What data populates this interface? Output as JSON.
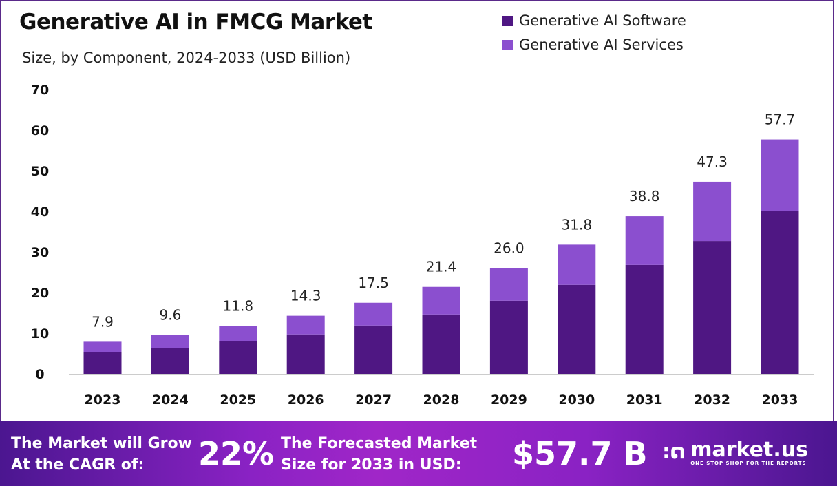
{
  "chart_data": {
    "type": "bar",
    "stacked": true,
    "title": "Generative AI in FMCG Market",
    "subtitle": "Size, by Component, 2024-2033 (USD Billion)",
    "categories": [
      "2023",
      "2024",
      "2025",
      "2026",
      "2027",
      "2028",
      "2029",
      "2030",
      "2031",
      "2032",
      "2033"
    ],
    "series": [
      {
        "name": "Generative AI Software",
        "color": "#4f1783",
        "values": [
          5.3,
          6.4,
          8.0,
          9.7,
          11.9,
          14.6,
          18.0,
          21.9,
          26.8,
          32.7,
          40.0
        ]
      },
      {
        "name": "Generative AI Services",
        "color": "#8b4fcf",
        "values": [
          2.6,
          3.2,
          3.8,
          4.6,
          5.6,
          6.8,
          8.0,
          9.9,
          12.0,
          14.6,
          17.7
        ]
      }
    ],
    "totals": [
      "7.9",
      "9.6",
      "11.8",
      "14.3",
      "17.5",
      "21.4",
      "26.0",
      "31.8",
      "38.8",
      "47.3",
      "57.7"
    ],
    "yticks": [
      0,
      10,
      20,
      30,
      40,
      50,
      60,
      70
    ],
    "ylim": [
      0,
      70
    ],
    "grid": false,
    "legend_position": "top-right"
  },
  "footer": {
    "cagr_text_1": "The Market will Grow",
    "cagr_text_2": "At the CAGR of:",
    "cagr_value": "22%",
    "forecast_text_1": "The Forecasted Market",
    "forecast_text_2": "Size for 2033 in USD:",
    "forecast_value": "$57.7 B",
    "logo_name": "market.us",
    "logo_tagline": "ONE STOP SHOP FOR THE REPORTS"
  }
}
